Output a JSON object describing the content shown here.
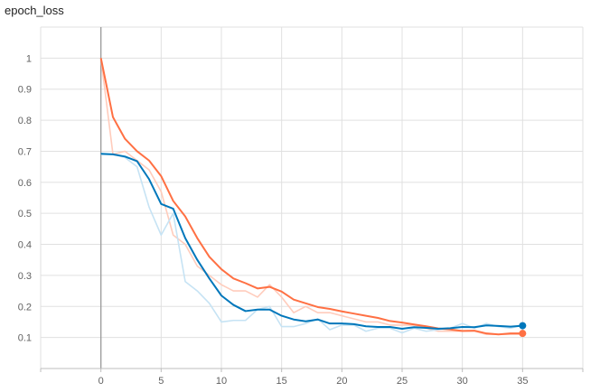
{
  "chart_data": {
    "type": "line",
    "title": "epoch_loss",
    "xlabel": "",
    "ylabel": "",
    "xlim": [
      -5,
      40
    ],
    "ylim": [
      0,
      1.1
    ],
    "x_ticks": [
      0,
      5,
      10,
      15,
      20,
      25,
      30,
      35
    ],
    "y_ticks": [
      0.1,
      0.2,
      0.3,
      0.4,
      0.5,
      0.6,
      0.7,
      0.8,
      0.9,
      1
    ],
    "y_tick_labels": [
      "0.1",
      "0.2",
      "0.3",
      "0.4",
      "0.5",
      "0.6",
      "0.7",
      "0.8",
      "0.9",
      "1"
    ],
    "grid": true,
    "series": [
      {
        "color": "#ff7043",
        "raw_color": "#ffccbc",
        "x": [
          0,
          1,
          2,
          3,
          4,
          5,
          6,
          7,
          8,
          9,
          10,
          11,
          12,
          13,
          14,
          15,
          16,
          17,
          18,
          19,
          20,
          21,
          22,
          23,
          24,
          25,
          26,
          27,
          28,
          29,
          30,
          31,
          32,
          33,
          34,
          35
        ],
        "raw": [
          1.0,
          0.69,
          0.7,
          0.67,
          0.64,
          0.57,
          0.43,
          0.4,
          0.33,
          0.3,
          0.27,
          0.25,
          0.25,
          0.23,
          0.27,
          0.23,
          0.18,
          0.2,
          0.18,
          0.18,
          0.17,
          0.16,
          0.15,
          0.15,
          0.14,
          0.14,
          0.14,
          0.13,
          0.12,
          0.12,
          0.12,
          0.12,
          0.11,
          0.11,
          0.11,
          0.11
        ],
        "smoothed": [
          1.0,
          0.81,
          0.74,
          0.7,
          0.67,
          0.62,
          0.54,
          0.49,
          0.42,
          0.36,
          0.32,
          0.29,
          0.275,
          0.258,
          0.263,
          0.248,
          0.222,
          0.21,
          0.198,
          0.192,
          0.184,
          0.177,
          0.17,
          0.163,
          0.153,
          0.148,
          0.142,
          0.136,
          0.129,
          0.126,
          0.121,
          0.122,
          0.113,
          0.11,
          0.113,
          0.113
        ]
      },
      {
        "color": "#0077bb",
        "raw_color": "#c6e3f4",
        "x": [
          0,
          1,
          2,
          3,
          4,
          5,
          6,
          7,
          8,
          9,
          10,
          11,
          12,
          13,
          14,
          15,
          16,
          17,
          18,
          19,
          20,
          21,
          22,
          23,
          24,
          25,
          26,
          27,
          28,
          29,
          30,
          31,
          32,
          33,
          34,
          35
        ],
        "raw": [
          0.69,
          0.69,
          0.68,
          0.65,
          0.52,
          0.43,
          0.5,
          0.28,
          0.25,
          0.21,
          0.15,
          0.155,
          0.155,
          0.19,
          0.2,
          0.135,
          0.135,
          0.145,
          0.16,
          0.125,
          0.14,
          0.14,
          0.12,
          0.13,
          0.13,
          0.115,
          0.13,
          0.12,
          0.125,
          0.13,
          0.145,
          0.13,
          0.145,
          0.135,
          0.13,
          0.14
        ],
        "smoothed": [
          0.692,
          0.69,
          0.683,
          0.668,
          0.61,
          0.53,
          0.515,
          0.42,
          0.35,
          0.29,
          0.235,
          0.205,
          0.185,
          0.19,
          0.19,
          0.17,
          0.158,
          0.152,
          0.158,
          0.145,
          0.145,
          0.143,
          0.136,
          0.134,
          0.134,
          0.128,
          0.133,
          0.131,
          0.128,
          0.13,
          0.134,
          0.133,
          0.139,
          0.137,
          0.135,
          0.138
        ]
      }
    ]
  }
}
